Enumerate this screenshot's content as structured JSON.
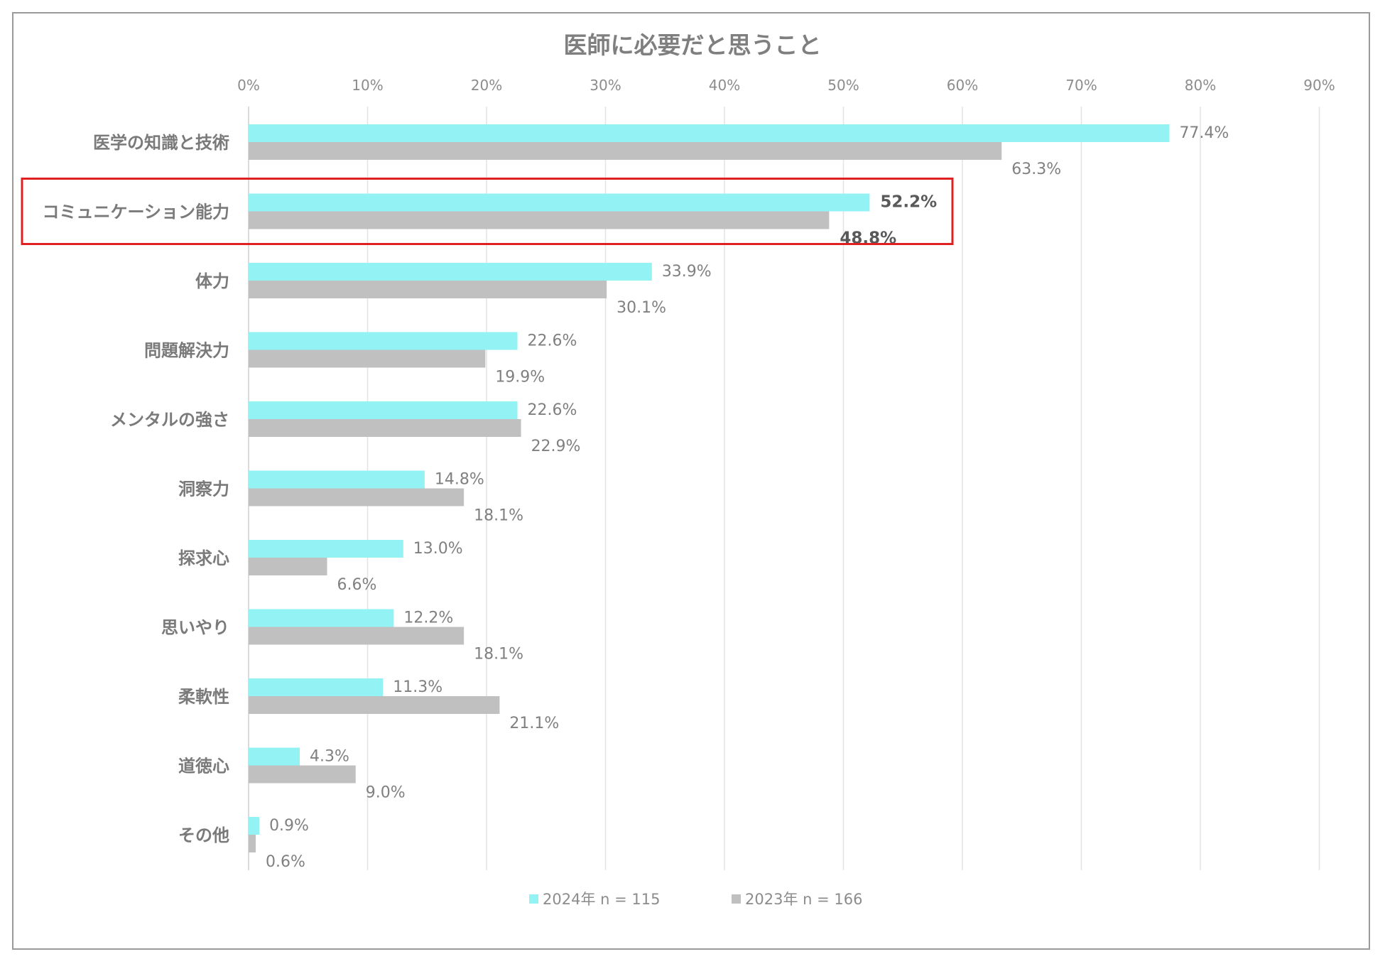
{
  "chart_data": {
    "type": "bar",
    "orientation": "horizontal",
    "title": "医師に必要だと思うこと",
    "x_ticks": [
      "0%",
      "10%",
      "20%",
      "30%",
      "40%",
      "50%",
      "60%",
      "70%",
      "80%",
      "90%"
    ],
    "xlim": [
      0,
      90
    ],
    "grid": true,
    "legend_position": "bottom",
    "categories": [
      "医学の知識と技術",
      "コミュニケーション能力",
      "体力",
      "問題解決力",
      "メンタルの強さ",
      "洞察力",
      "探求心",
      "思いやり",
      "柔軟性",
      "道徳心",
      "その他"
    ],
    "series": [
      {
        "name": "2024年 n = 115",
        "color": "#93f2f4",
        "values": [
          77.4,
          52.2,
          33.9,
          22.6,
          22.6,
          14.8,
          13.0,
          12.2,
          11.3,
          4.3,
          0.9
        ],
        "labels": [
          "77.4%",
          "52.2%",
          "33.9%",
          "22.6%",
          "22.6%",
          "14.8%",
          "13.0%",
          "12.2%",
          "11.3%",
          "4.3%",
          "0.9%"
        ]
      },
      {
        "name": "2023年 n = 166",
        "color": "#c0c0c0",
        "values": [
          63.3,
          48.8,
          30.1,
          19.9,
          22.9,
          18.1,
          6.6,
          18.1,
          21.1,
          9.0,
          0.6
        ],
        "labels": [
          "63.3%",
          "48.8%",
          "30.1%",
          "19.9%",
          "22.9%",
          "18.1%",
          "6.6%",
          "18.1%",
          "21.1%",
          "9.0%",
          "0.6%"
        ]
      }
    ],
    "highlight": {
      "category": "コミュニケーション能力",
      "color": "#e02020"
    }
  }
}
